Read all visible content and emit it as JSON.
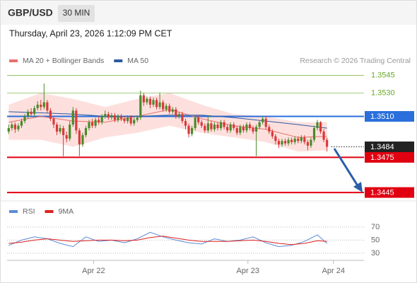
{
  "header": {
    "symbol": "GBP/USD",
    "timeframe": "30 MIN",
    "datetime": "Thursday, April 23, 2026 1:12:09 PM CET"
  },
  "chart_data": [
    {
      "type": "candlestick",
      "source": "Research © 2026 Trading Central",
      "up_color": "#4a8a2a",
      "down_color": "#d83a3a",
      "xlim": [
        -0.5,
        110.5
      ],
      "ylim": [
        1.3439,
        1.3552
      ],
      "x": [
        0,
        1,
        2,
        3,
        4,
        5,
        6,
        7,
        8,
        9,
        10,
        11,
        12,
        13,
        14,
        15,
        16,
        17,
        18,
        19,
        20,
        21,
        22,
        23,
        24,
        25,
        26,
        27,
        28,
        29,
        30,
        31,
        32,
        33,
        34,
        35,
        36,
        37,
        38,
        39,
        40,
        41,
        42,
        43,
        44,
        45,
        46,
        47,
        48,
        49,
        50,
        51,
        52,
        53,
        54,
        55,
        56,
        57,
        58,
        59,
        60,
        61,
        62,
        63,
        64,
        65,
        66,
        67,
        68,
        69,
        70,
        71,
        72,
        73,
        74,
        75,
        76,
        77,
        78,
        79,
        80,
        81,
        82,
        83,
        84,
        85,
        86,
        87,
        88,
        89,
        90,
        91,
        92,
        93,
        94,
        95,
        96,
        97,
        98,
        99
      ],
      "ohlc": [
        [
          1.3497,
          1.3503,
          1.3495,
          1.35
        ],
        [
          1.35,
          1.3505,
          1.3498,
          1.3503
        ],
        [
          1.3503,
          1.3505,
          1.3496,
          1.3499
        ],
        [
          1.3499,
          1.3504,
          1.3497,
          1.3502
        ],
        [
          1.3502,
          1.3508,
          1.35,
          1.3506
        ],
        [
          1.3506,
          1.3512,
          1.3504,
          1.351
        ],
        [
          1.351,
          1.3516,
          1.3508,
          1.3514
        ],
        [
          1.3514,
          1.3517,
          1.351,
          1.3512
        ],
        [
          1.3512,
          1.3519,
          1.351,
          1.3517
        ],
        [
          1.3517,
          1.3523,
          1.3515,
          1.352
        ],
        [
          1.352,
          1.3524,
          1.3515,
          1.3518
        ],
        [
          1.3518,
          1.3538,
          1.3516,
          1.3522
        ],
        [
          1.3522,
          1.3524,
          1.3513,
          1.3515
        ],
        [
          1.3515,
          1.3517,
          1.3506,
          1.3508
        ],
        [
          1.3508,
          1.351,
          1.35,
          1.3503
        ],
        [
          1.3503,
          1.3505,
          1.3494,
          1.3497
        ],
        [
          1.3497,
          1.3503,
          1.3495,
          1.35
        ],
        [
          1.35,
          1.3502,
          1.3476,
          1.3494
        ],
        [
          1.3494,
          1.3497,
          1.3488,
          1.3491
        ],
        [
          1.3491,
          1.3506,
          1.3489,
          1.3503
        ],
        [
          1.3503,
          1.3518,
          1.3501,
          1.3515
        ],
        [
          1.3515,
          1.3517,
          1.3495,
          1.3498
        ],
        [
          1.3498,
          1.35,
          1.3476,
          1.3486
        ],
        [
          1.3486,
          1.3496,
          1.3484,
          1.3494
        ],
        [
          1.3494,
          1.3502,
          1.3492,
          1.35
        ],
        [
          1.35,
          1.3507,
          1.3498,
          1.3505
        ],
        [
          1.3505,
          1.3508,
          1.35,
          1.3502
        ],
        [
          1.3502,
          1.3509,
          1.35,
          1.3507
        ],
        [
          1.3507,
          1.351,
          1.3503,
          1.3505
        ],
        [
          1.3505,
          1.3512,
          1.3503,
          1.351
        ],
        [
          1.351,
          1.3515,
          1.3508,
          1.3512
        ],
        [
          1.3512,
          1.3514,
          1.3507,
          1.3509
        ],
        [
          1.3509,
          1.3513,
          1.3507,
          1.3511
        ],
        [
          1.3511,
          1.3513,
          1.3505,
          1.3507
        ],
        [
          1.3507,
          1.3512,
          1.3505,
          1.351
        ],
        [
          1.351,
          1.3512,
          1.3506,
          1.3508
        ],
        [
          1.3508,
          1.351,
          1.3504,
          1.3506
        ],
        [
          1.3506,
          1.3511,
          1.3504,
          1.3509
        ],
        [
          1.3509,
          1.3511,
          1.3502,
          1.3504
        ],
        [
          1.3504,
          1.3509,
          1.3502,
          1.3507
        ],
        [
          1.3507,
          1.3511,
          1.3505,
          1.3509
        ],
        [
          1.3509,
          1.3532,
          1.3507,
          1.3528
        ],
        [
          1.3528,
          1.353,
          1.3519,
          1.3522
        ],
        [
          1.3522,
          1.3527,
          1.352,
          1.3525
        ],
        [
          1.3525,
          1.3527,
          1.3517,
          1.352
        ],
        [
          1.352,
          1.3526,
          1.3518,
          1.3524
        ],
        [
          1.3524,
          1.3526,
          1.3516,
          1.3518
        ],
        [
          1.3518,
          1.353,
          1.3516,
          1.3522
        ],
        [
          1.3522,
          1.3524,
          1.3514,
          1.3516
        ],
        [
          1.3516,
          1.3521,
          1.3514,
          1.3519
        ],
        [
          1.3519,
          1.3521,
          1.3512,
          1.3514
        ],
        [
          1.3514,
          1.3518,
          1.3512,
          1.3516
        ],
        [
          1.3516,
          1.3518,
          1.3508,
          1.351
        ],
        [
          1.351,
          1.3514,
          1.3508,
          1.3512
        ],
        [
          1.3512,
          1.3514,
          1.3504,
          1.3506
        ],
        [
          1.3506,
          1.3508,
          1.3499,
          1.3502
        ],
        [
          1.3502,
          1.3504,
          1.3492,
          1.3495
        ],
        [
          1.3495,
          1.3502,
          1.3493,
          1.35
        ],
        [
          1.35,
          1.3511,
          1.3498,
          1.3509
        ],
        [
          1.3509,
          1.3511,
          1.3503,
          1.3505
        ],
        [
          1.3505,
          1.3507,
          1.35,
          1.3502
        ],
        [
          1.3502,
          1.3504,
          1.3496,
          1.3498
        ],
        [
          1.3498,
          1.3511,
          1.3496,
          1.3504
        ],
        [
          1.3504,
          1.3506,
          1.3497,
          1.3499
        ],
        [
          1.3499,
          1.3505,
          1.3497,
          1.3503
        ],
        [
          1.3503,
          1.3505,
          1.3498,
          1.35
        ],
        [
          1.35,
          1.3507,
          1.3498,
          1.3505
        ],
        [
          1.3505,
          1.3507,
          1.3499,
          1.3501
        ],
        [
          1.3501,
          1.3503,
          1.3496,
          1.3498
        ],
        [
          1.3498,
          1.3505,
          1.3496,
          1.3503
        ],
        [
          1.3503,
          1.3505,
          1.3498,
          1.35
        ],
        [
          1.35,
          1.3502,
          1.3494,
          1.3496
        ],
        [
          1.3496,
          1.3503,
          1.3494,
          1.3501
        ],
        [
          1.3501,
          1.3503,
          1.3496,
          1.3498
        ],
        [
          1.3498,
          1.3505,
          1.3496,
          1.3503
        ],
        [
          1.3503,
          1.3505,
          1.3498,
          1.35
        ],
        [
          1.35,
          1.3502,
          1.3495,
          1.3497
        ],
        [
          1.3497,
          1.3503,
          1.3476,
          1.3501
        ],
        [
          1.3501,
          1.3507,
          1.3499,
          1.3505
        ],
        [
          1.3505,
          1.351,
          1.3503,
          1.3508
        ],
        [
          1.3508,
          1.351,
          1.3499,
          1.3501
        ],
        [
          1.3501,
          1.3503,
          1.3495,
          1.3497
        ],
        [
          1.3497,
          1.3499,
          1.3491,
          1.3493
        ],
        [
          1.3493,
          1.3495,
          1.3486,
          1.3489
        ],
        [
          1.3489,
          1.3491,
          1.3483,
          1.3486
        ],
        [
          1.3486,
          1.3491,
          1.3484,
          1.3489
        ],
        [
          1.3489,
          1.3491,
          1.3485,
          1.3487
        ],
        [
          1.3487,
          1.3492,
          1.3485,
          1.349
        ],
        [
          1.349,
          1.3492,
          1.3486,
          1.3488
        ],
        [
          1.3488,
          1.3493,
          1.3486,
          1.3491
        ],
        [
          1.3491,
          1.3493,
          1.3487,
          1.3489
        ],
        [
          1.3489,
          1.3494,
          1.3487,
          1.3492
        ],
        [
          1.3492,
          1.3494,
          1.3486,
          1.3488
        ],
        [
          1.3488,
          1.349,
          1.3481,
          1.3485
        ],
        [
          1.3485,
          1.3492,
          1.3483,
          1.349
        ],
        [
          1.349,
          1.3502,
          1.3488,
          1.35
        ],
        [
          1.35,
          1.3507,
          1.3498,
          1.3505
        ],
        [
          1.3505,
          1.3506,
          1.3495,
          1.3497
        ],
        [
          1.3497,
          1.3499,
          1.3488,
          1.349
        ],
        [
          1.349,
          1.3492,
          1.348,
          1.3484
        ]
      ],
      "series": [
        {
          "name": "MA 20 + Bollinger Bands",
          "color": "#e8706a",
          "band_color": "#fde0de",
          "x": [
            0,
            10,
            20,
            30,
            40,
            50,
            60,
            70,
            80,
            90,
            99
          ],
          "values": [
            1.3505,
            1.351,
            1.3506,
            1.3505,
            1.351,
            1.3516,
            1.3508,
            1.3502,
            1.3499,
            1.3492,
            1.3493
          ],
          "upper": [
            1.352,
            1.353,
            1.3525,
            1.3518,
            1.3525,
            1.353,
            1.352,
            1.3512,
            1.351,
            1.3505,
            1.3505
          ],
          "lower": [
            1.349,
            1.349,
            1.3484,
            1.3492,
            1.3496,
            1.3502,
            1.3496,
            1.3492,
            1.3488,
            1.348,
            1.3481
          ]
        },
        {
          "name": "MA 50",
          "color": "#2c5aa0",
          "x": [
            0,
            10,
            20,
            30,
            40,
            50,
            60,
            70,
            80,
            90,
            99
          ],
          "values": [
            1.3514,
            1.3513,
            1.3512,
            1.351,
            1.351,
            1.3511,
            1.3511,
            1.3509,
            1.3506,
            1.3503,
            1.35
          ]
        }
      ],
      "levels": [
        {
          "value": 1.3545,
          "label": "1.3545",
          "color": "#6aaa2a",
          "style": "text"
        },
        {
          "value": 1.353,
          "label": "1.3530",
          "color": "#6aaa2a",
          "style": "text"
        },
        {
          "value": 1.351,
          "label": "1.3510",
          "color": "#2a6fdb",
          "style": "box"
        },
        {
          "value": 1.3484,
          "label": "1.3484",
          "color": "#222222",
          "style": "current"
        },
        {
          "value": 1.3475,
          "label": "1.3475",
          "color": "#e00010",
          "style": "box"
        },
        {
          "value": 1.3445,
          "label": "1.3445",
          "color": "#e00010",
          "style": "box"
        }
      ]
    },
    {
      "type": "line",
      "xlim": [
        -0.5,
        110.5
      ],
      "ylim": [
        19,
        84
      ],
      "yticks": [
        30,
        50,
        70
      ],
      "xticks": [
        {
          "value": 26.4,
          "label": "Apr 22"
        },
        {
          "value": 74.4,
          "label": "Apr 23"
        },
        {
          "value": 101,
          "label": "Apr 24"
        }
      ],
      "series": [
        {
          "name": "RSI",
          "color": "#5b8bd6",
          "x": [
            0,
            4,
            8,
            12,
            16,
            20,
            24,
            28,
            32,
            36,
            40,
            44,
            48,
            52,
            56,
            60,
            64,
            68,
            72,
            76,
            80,
            84,
            88,
            92,
            96,
            99
          ],
          "values": [
            42,
            50,
            55,
            52,
            45,
            40,
            55,
            48,
            50,
            46,
            52,
            62,
            55,
            50,
            46,
            44,
            52,
            48,
            50,
            55,
            46,
            40,
            42,
            48,
            58,
            45
          ]
        },
        {
          "name": "9MA",
          "color": "#e02020",
          "x": [
            0,
            4,
            8,
            12,
            16,
            20,
            24,
            28,
            32,
            36,
            40,
            44,
            48,
            52,
            56,
            60,
            64,
            68,
            72,
            76,
            80,
            84,
            88,
            92,
            96,
            99
          ],
          "values": [
            45,
            47,
            50,
            52,
            50,
            48,
            49,
            50,
            50,
            49,
            50,
            54,
            56,
            53,
            50,
            48,
            48,
            48,
            49,
            50,
            48,
            45,
            43,
            45,
            49,
            48
          ]
        }
      ]
    }
  ]
}
